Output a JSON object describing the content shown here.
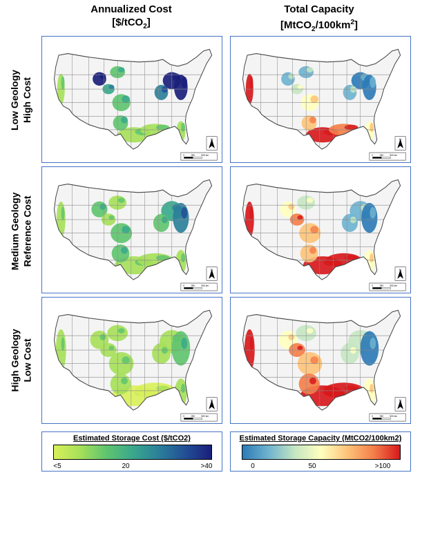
{
  "columns": {
    "cost": {
      "title_line1": "Annualized Cost",
      "title_line2_pre": "[$/tCO",
      "title_line2_sub": "2",
      "title_line2_post": "]"
    },
    "capacity": {
      "title_line1": "Total Capacity",
      "title_line2_pre": "[MtCO",
      "title_line2_sub": "2",
      "title_line2_mid": "/100km",
      "title_line2_sup": "2",
      "title_line2_post": "]"
    }
  },
  "rows": [
    {
      "line1": "Low Geology",
      "line2": "High Cost"
    },
    {
      "line1": "Medium Geology",
      "line2": "Reference Cost"
    },
    {
      "line1": "High Geology",
      "line2": "Low Cost"
    }
  ],
  "scalebar": {
    "labels": [
      "0",
      "250",
      "500 km"
    ]
  },
  "north_arrow": {
    "label": "N",
    "icon": "north-arrow-icon"
  },
  "legends": {
    "cost": {
      "title": "Estimated Storage Cost ($/tCO2)",
      "ticks": [
        "<5",
        "20",
        ">40"
      ],
      "colors": [
        "#d9f05a",
        "#a6e05a",
        "#5fc46f",
        "#3aa88c",
        "#2b7f9a",
        "#224f96",
        "#1a1f7a"
      ]
    },
    "capacity": {
      "title": "Estimated Storage Capacity (MtCO2/100km2)",
      "ticks": [
        "0",
        "50",
        ">100"
      ],
      "colors": [
        "#2c7bb6",
        "#6fb3cf",
        "#c5e6c2",
        "#ffffbf",
        "#fdc378",
        "#f47f4a",
        "#d7191c"
      ]
    }
  }
}
